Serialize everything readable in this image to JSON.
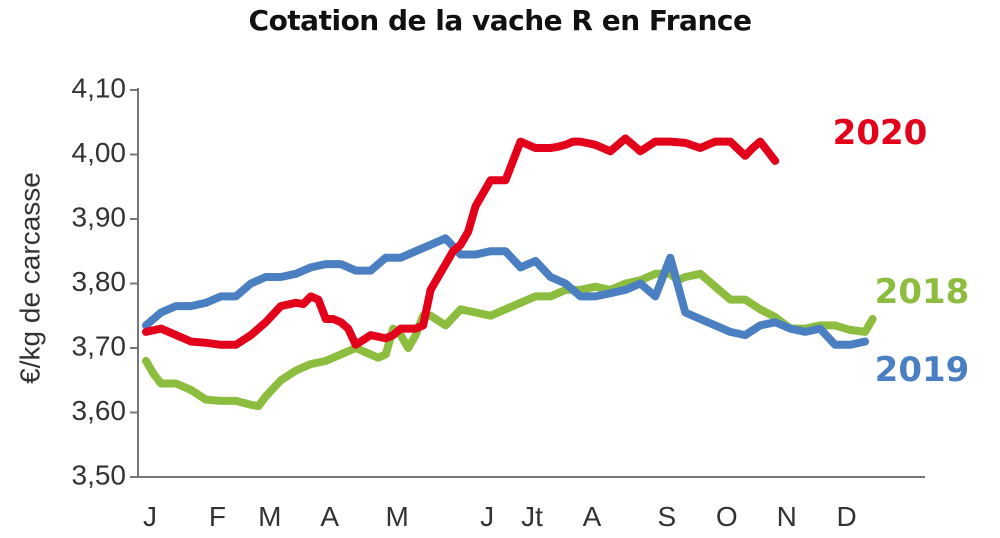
{
  "chart_data": {
    "type": "line",
    "title": "Cotation de la vache R en France",
    "ylabel": "€/kg de carcasse",
    "xlabel": "",
    "ylim": [
      3.5,
      4.1
    ],
    "xlim": [
      0,
      52
    ],
    "y_ticks": [
      "3,50",
      "3,60",
      "3,70",
      "3,80",
      "3,90",
      "4,00",
      "4,10"
    ],
    "y_tick_values": [
      3.5,
      3.6,
      3.7,
      3.8,
      3.9,
      4.0,
      4.1
    ],
    "x_tick_labels": [
      "J",
      "F",
      "M",
      "A",
      "M",
      "J",
      "Jt",
      "A",
      "S",
      "O",
      "N",
      "D"
    ],
    "x_tick_weeks": [
      0,
      4.5,
      8,
      12,
      16.5,
      22.5,
      25.5,
      29.5,
      34.5,
      38.5,
      42.5,
      46.5
    ],
    "grid": false,
    "series": [
      {
        "name": "2020",
        "color": "#e2001a",
        "x": [
          0,
          1,
          2,
          3,
          4,
          5,
          6,
          7,
          8,
          9,
          10,
          10.5,
          11,
          11.5,
          12,
          12.5,
          13,
          13.5,
          14,
          15,
          16,
          16.5,
          17,
          17.5,
          18,
          18.5,
          19,
          20,
          20.5,
          21,
          21.5,
          22,
          23,
          24,
          25,
          26,
          27,
          27.5,
          28,
          28.5,
          29,
          30,
          31,
          32,
          33,
          34,
          35,
          36,
          37,
          38,
          39,
          40,
          40.5,
          41,
          42
        ],
        "y": [
          3.725,
          3.73,
          3.72,
          3.71,
          3.708,
          3.705,
          3.705,
          3.72,
          3.74,
          3.765,
          3.77,
          3.768,
          3.78,
          3.775,
          3.745,
          3.745,
          3.74,
          3.73,
          3.705,
          3.72,
          3.715,
          3.72,
          3.73,
          3.73,
          3.73,
          3.735,
          3.79,
          3.83,
          3.85,
          3.86,
          3.88,
          3.92,
          3.96,
          3.96,
          4.02,
          4.01,
          4.01,
          4.012,
          4.015,
          4.02,
          4.02,
          4.015,
          4.005,
          4.025,
          4.005,
          4.02,
          4.02,
          4.018,
          4.01,
          4.02,
          4.02,
          3.998,
          4.01,
          4.02,
          3.99
        ]
      },
      {
        "name": "2019",
        "color": "#4a7fc1",
        "x": [
          0,
          1,
          2,
          3,
          4,
          5,
          6,
          7,
          8,
          9,
          10,
          11,
          12,
          13,
          14,
          15,
          16,
          17,
          18,
          19,
          20,
          21,
          22,
          23,
          24,
          25,
          26,
          27,
          28,
          29,
          30,
          31,
          32,
          33,
          34,
          35,
          36,
          37,
          38,
          39,
          40,
          41,
          42,
          43,
          44,
          45,
          46,
          47,
          48
        ],
        "y": [
          3.735,
          3.755,
          3.765,
          3.765,
          3.77,
          3.78,
          3.78,
          3.8,
          3.81,
          3.81,
          3.815,
          3.825,
          3.83,
          3.83,
          3.82,
          3.82,
          3.84,
          3.84,
          3.85,
          3.86,
          3.87,
          3.845,
          3.845,
          3.85,
          3.85,
          3.825,
          3.835,
          3.81,
          3.8,
          3.78,
          3.78,
          3.785,
          3.79,
          3.8,
          3.78,
          3.84,
          3.755,
          3.745,
          3.735,
          3.725,
          3.72,
          3.735,
          3.74,
          3.73,
          3.725,
          3.73,
          3.705,
          3.705,
          3.71
        ]
      },
      {
        "name": "2018",
        "color": "#8dbd3e",
        "x": [
          0,
          0.5,
          1,
          2,
          3,
          4,
          5,
          6,
          7,
          7.5,
          8,
          9,
          10,
          11,
          12,
          13,
          14,
          15,
          15.5,
          16,
          16.5,
          17,
          17.5,
          18,
          18.5,
          19,
          20,
          21,
          22,
          23,
          24,
          25,
          26,
          27,
          28,
          29,
          30,
          31,
          32,
          33,
          34,
          35,
          35.5,
          36,
          37,
          38,
          39,
          40,
          41,
          42,
          43,
          44,
          45,
          46,
          47,
          48,
          48.5
        ],
        "y": [
          3.68,
          3.66,
          3.645,
          3.645,
          3.635,
          3.62,
          3.618,
          3.618,
          3.612,
          3.61,
          3.625,
          3.65,
          3.665,
          3.675,
          3.68,
          3.69,
          3.7,
          3.69,
          3.685,
          3.69,
          3.73,
          3.72,
          3.7,
          3.72,
          3.75,
          3.75,
          3.735,
          3.76,
          3.755,
          3.75,
          3.76,
          3.77,
          3.78,
          3.78,
          3.79,
          3.79,
          3.795,
          3.79,
          3.8,
          3.805,
          3.815,
          3.815,
          3.805,
          3.81,
          3.815,
          3.795,
          3.775,
          3.775,
          3.76,
          3.748,
          3.73,
          3.73,
          3.735,
          3.735,
          3.728,
          3.725,
          3.745
        ]
      }
    ]
  }
}
